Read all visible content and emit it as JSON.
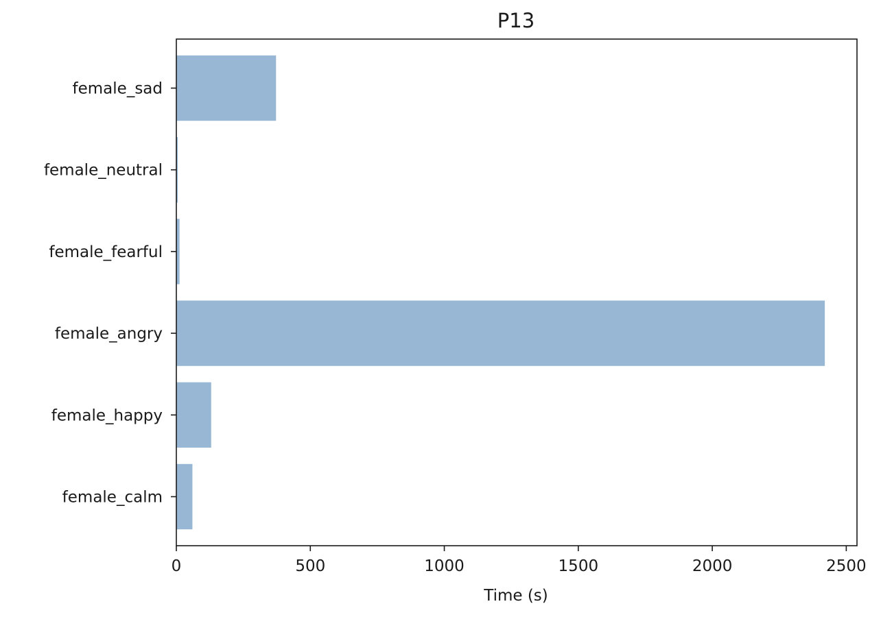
{
  "chart_data": {
    "type": "bar",
    "orientation": "horizontal",
    "title": "P13",
    "xlabel": "Time (s)",
    "ylabel": "",
    "categories": [
      "female_calm",
      "female_happy",
      "female_angry",
      "female_fearful",
      "female_neutral",
      "female_sad"
    ],
    "values": [
      60,
      130,
      2420,
      12,
      5,
      372
    ],
    "xlim": [
      0,
      2540
    ],
    "xticks": [
      0,
      500,
      1000,
      1500,
      2000,
      2500
    ],
    "grid": false,
    "legend": "none",
    "bar_color": "#97b7d5",
    "axis_color": "#1a1a1a"
  }
}
